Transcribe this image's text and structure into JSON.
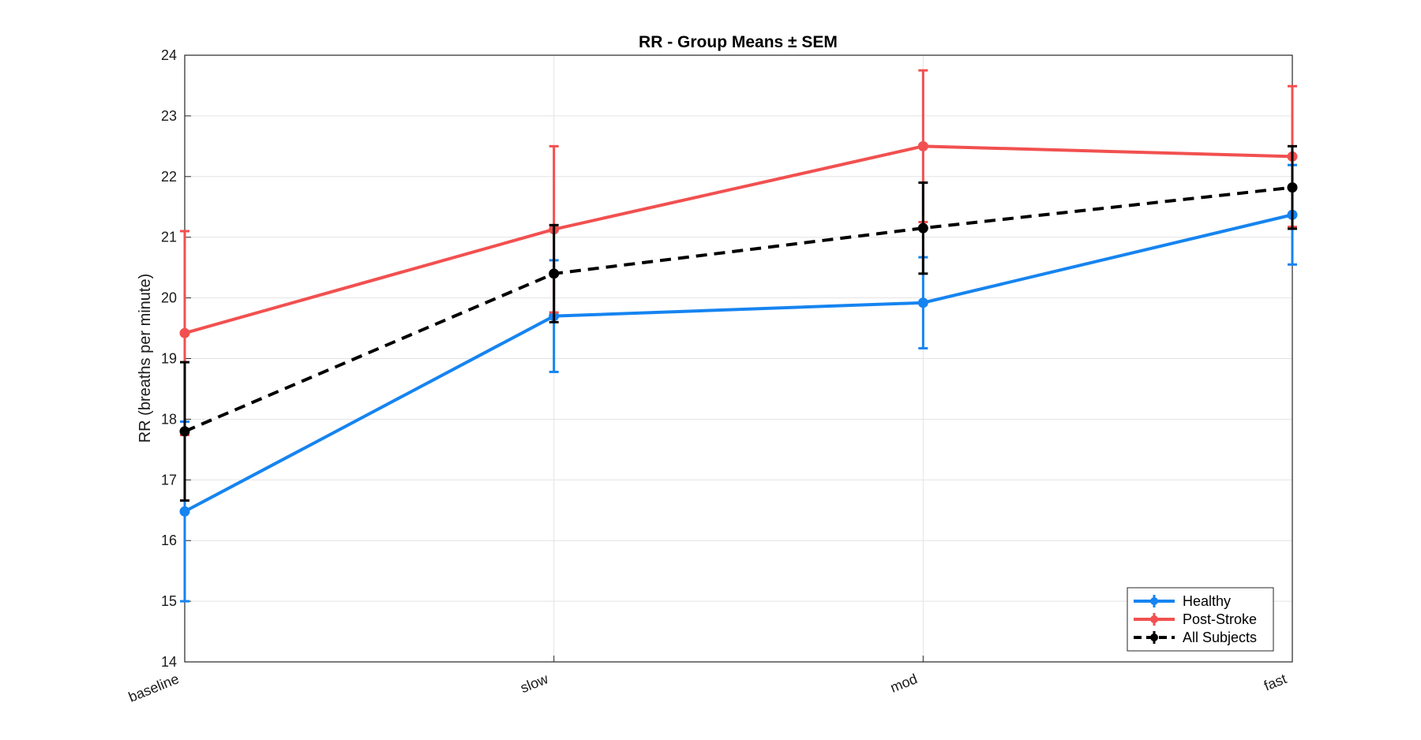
{
  "chart_data": {
    "type": "line",
    "title": "RR - Group Means ± SEM",
    "xlabel": "",
    "ylabel": "RR (breaths per minute)",
    "categories": [
      "baseline",
      "slow",
      "mod",
      "fast"
    ],
    "ylim": [
      14,
      24
    ],
    "yticks": [
      14,
      15,
      16,
      17,
      18,
      19,
      20,
      21,
      22,
      23,
      24
    ],
    "grid": true,
    "legend_position": "bottom-right",
    "series": [
      {
        "name": "Healthy",
        "color": "#1684f0",
        "dashed": false,
        "values": [
          16.48,
          19.7,
          19.92,
          21.37
        ],
        "sem": [
          1.48,
          0.92,
          0.75,
          0.82
        ]
      },
      {
        "name": "Post-Stroke",
        "color": "#f25050",
        "dashed": false,
        "values": [
          19.42,
          21.13,
          22.5,
          22.33
        ],
        "sem": [
          1.68,
          1.37,
          1.25,
          1.16
        ]
      },
      {
        "name": "All Subjects",
        "color": "#000000",
        "dashed": true,
        "values": [
          17.8,
          20.4,
          21.15,
          21.82
        ],
        "sem": [
          1.14,
          0.8,
          0.75,
          0.68
        ]
      }
    ]
  }
}
